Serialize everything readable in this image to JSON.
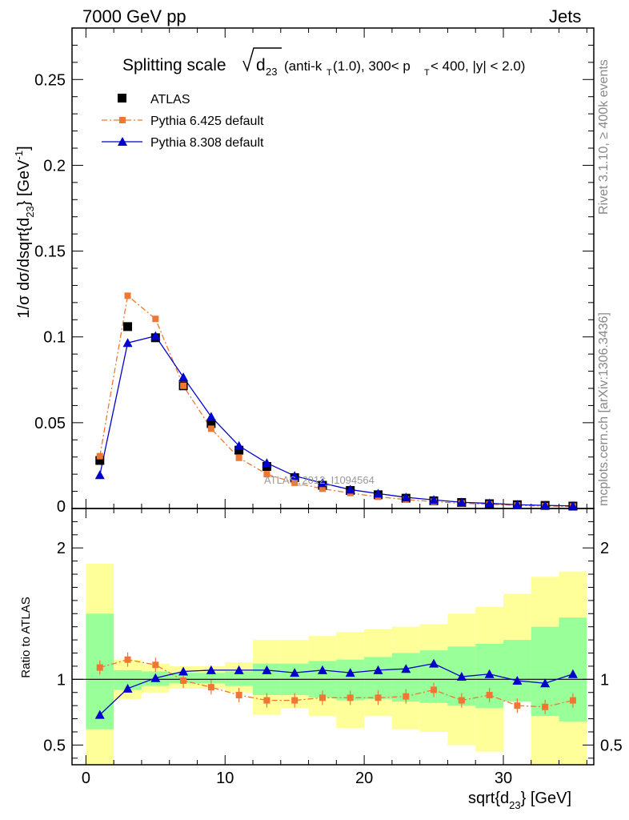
{
  "header": {
    "left": "7000 GeV pp",
    "right": "Jets"
  },
  "side_labels": {
    "rivet": "Rivet 3.1.10, ≥ 400k events",
    "mcplots": "mcplots.cern.ch [arXiv:1306.3436]"
  },
  "title": {
    "main": "Splitting scale",
    "sqrt_term": "d",
    "sqrt_sub": "23",
    "detail": "(anti-k",
    "detail_sub": "T",
    "detail2": "(1.0), 300< p",
    "detail_sub2": "T",
    "detail3": " < 400, |y| < 2.0)"
  },
  "watermark": "ATLAS_2012_I1094564",
  "axes": {
    "ylabel_main": "1/σ dσ/dsqrt{d",
    "ylabel_sub": "23",
    "ylabel_rest": "} [GeV",
    "ylabel_sup": "-1",
    "ylabel_end": "]",
    "ylabel_ratio": "Ratio to ATLAS",
    "xlabel_main": "sqrt{d",
    "xlabel_sub": "23",
    "xlabel_rest": "} [GeV]"
  },
  "colors": {
    "atlas": "#000000",
    "pythia6": "#ee7733",
    "pythia8": "#0000cc",
    "band_green": "#99ff99",
    "band_yellow": "#ffff99"
  },
  "chart_data": [
    {
      "type": "scatter",
      "xlim": [
        -1,
        36.5
      ],
      "ylim": [
        0,
        0.28
      ],
      "xticks": [
        0,
        10,
        20,
        30
      ],
      "yticks": [
        0.05,
        0.1,
        0.15,
        0.2,
        0.25
      ],
      "ytick_labels": [
        "0.05",
        "0.1",
        "0.15",
        "0.2",
        "0.25"
      ],
      "zero_label": "0",
      "legend_position": "top-left",
      "x": [
        1,
        3,
        5,
        7,
        9,
        11,
        13,
        15,
        17,
        19,
        21,
        23,
        25,
        27,
        29,
        31,
        33,
        35
      ],
      "series": [
        {
          "name": "ATLAS",
          "marker": "square",
          "values": [
            0.028,
            0.106,
            0.0995,
            0.0715,
            0.0495,
            0.034,
            0.0245,
            0.018,
            0.0135,
            0.0105,
            0.008,
            0.006,
            0.0045,
            0.0035,
            0.0028,
            0.0022,
            0.0018,
            0.0014
          ]
        },
        {
          "name": "Pythia 6.425 default",
          "marker": "small-square",
          "line": "dashdot",
          "values": [
            0.0305,
            0.124,
            0.1105,
            0.0715,
            0.0465,
            0.0295,
            0.02,
            0.015,
            0.0115,
            0.009,
            0.0068,
            0.0052,
            0.004,
            0.003,
            0.0025,
            0.0018,
            0.0014,
            0.0012
          ]
        },
        {
          "name": "Pythia 8.308 default",
          "marker": "triangle",
          "line": "solid",
          "values": [
            0.0195,
            0.0965,
            0.1005,
            0.0765,
            0.0535,
            0.0365,
            0.0265,
            0.019,
            0.0148,
            0.011,
            0.0087,
            0.0065,
            0.005,
            0.0036,
            0.003,
            0.0022,
            0.0018,
            0.0015
          ]
        }
      ]
    },
    {
      "type": "line",
      "xlim": [
        -1,
        36.5
      ],
      "ylim": [
        0.35,
        2.3
      ],
      "yticks": [
        0.5,
        1,
        2
      ],
      "ytick_labels": [
        "0.5",
        "1",
        "2"
      ],
      "bins": [
        [
          0,
          2
        ],
        [
          2,
          4
        ],
        [
          4,
          6
        ],
        [
          6,
          8
        ],
        [
          8,
          10
        ],
        [
          10,
          12
        ],
        [
          12,
          14
        ],
        [
          14,
          16
        ],
        [
          16,
          18
        ],
        [
          18,
          20
        ],
        [
          20,
          22
        ],
        [
          22,
          24
        ],
        [
          24,
          26
        ],
        [
          26,
          28
        ],
        [
          28,
          30
        ],
        [
          30,
          32
        ],
        [
          32,
          34
        ],
        [
          34,
          36
        ]
      ],
      "band_yellow": [
        [
          0.3,
          1.88
        ],
        [
          0.85,
          1.15
        ],
        [
          0.9,
          1.12
        ],
        [
          0.93,
          1.1
        ],
        [
          0.93,
          1.1
        ],
        [
          0.9,
          1.13
        ],
        [
          0.73,
          1.3
        ],
        [
          0.78,
          1.3
        ],
        [
          0.72,
          1.33
        ],
        [
          0.63,
          1.36
        ],
        [
          0.72,
          1.38
        ],
        [
          0.62,
          1.4
        ],
        [
          0.6,
          1.42
        ],
        [
          0.5,
          1.5
        ],
        [
          0.45,
          1.55
        ],
        [
          0.83,
          1.65
        ],
        [
          0.3,
          1.78
        ],
        [
          0.3,
          1.82
        ]
      ],
      "band_green": [
        [
          0.62,
          1.5
        ],
        [
          0.92,
          1.07
        ],
        [
          0.95,
          1.06
        ],
        [
          0.97,
          1.05
        ],
        [
          0.97,
          1.05
        ],
        [
          0.95,
          1.06
        ],
        [
          0.88,
          1.12
        ],
        [
          0.88,
          1.12
        ],
        [
          0.86,
          1.14
        ],
        [
          0.84,
          1.15
        ],
        [
          0.85,
          1.17
        ],
        [
          0.83,
          1.2
        ],
        [
          0.82,
          1.22
        ],
        [
          0.8,
          1.25
        ],
        [
          0.78,
          1.27
        ],
        [
          0.83,
          1.3
        ],
        [
          0.72,
          1.4
        ],
        [
          0.68,
          1.47
        ]
      ],
      "series": [
        {
          "name": "Pythia 6.425 default",
          "values": [
            1.09,
            1.15,
            1.11,
            0.99,
            0.94,
            0.88,
            0.84,
            0.84,
            0.86,
            0.86,
            0.86,
            0.87,
            0.92,
            0.84,
            0.88,
            0.8,
            0.79,
            0.84
          ]
        },
        {
          "name": "Pythia 8.308 default",
          "values": [
            0.73,
            0.93,
            1.01,
            1.06,
            1.07,
            1.07,
            1.07,
            1.05,
            1.07,
            1.05,
            1.07,
            1.08,
            1.12,
            1.02,
            1.04,
            0.99,
            0.97,
            1.04
          ]
        }
      ]
    }
  ]
}
